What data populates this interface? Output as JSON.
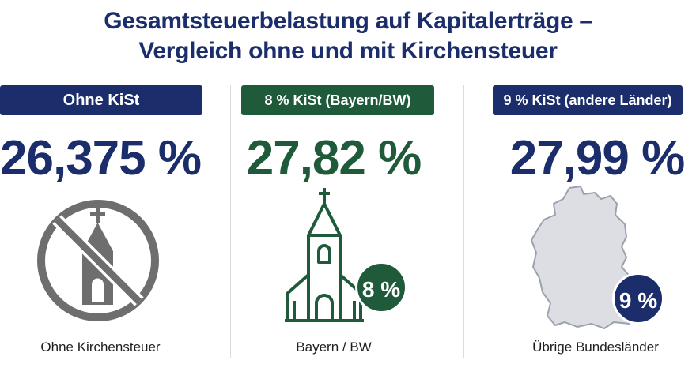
{
  "title": {
    "line1": "Gesamtsteuerbelastung auf Kapitalerträge –",
    "line2": "Vergleich ohne und mit Kirchensteuer"
  },
  "columns": [
    {
      "pill_label": "Ohne KiSt",
      "big_value": "26,375 %",
      "caption": "Ohne Kirchensteuer",
      "icon": "crossed-church-icon",
      "color": "#1b2e6b"
    },
    {
      "pill_label": "8 % KiSt (Bayern/BW)",
      "big_value": "27,82 %",
      "caption": "Bayern / BW",
      "badge": "8 %",
      "icon": "church-icon",
      "color": "#1f5b3a"
    },
    {
      "pill_label": "9 % KiSt (andere Länder)",
      "big_value": "27,99 %",
      "caption": "Übrige Bundesländer",
      "badge": "9 %",
      "icon": "germany-map-icon",
      "color": "#1b2e6b"
    }
  ]
}
